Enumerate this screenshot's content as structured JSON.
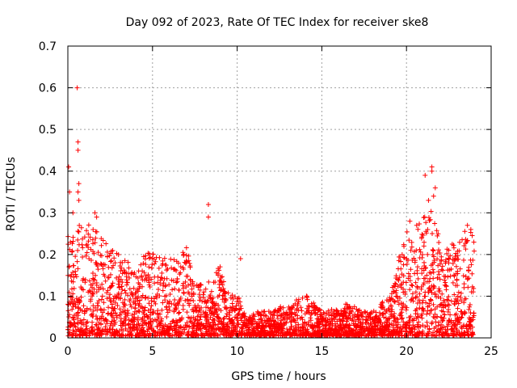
{
  "chart_data": {
    "type": "scatter",
    "title": "Day 092 of 2023, Rate Of TEC Index for receiver ske8",
    "xlabel": "GPS time / hours",
    "ylabel": "ROTI / TECUs",
    "xlim": [
      0,
      25
    ],
    "ylim": [
      0,
      0.7
    ],
    "xticks": [
      "0",
      "5",
      "10",
      "15",
      "20",
      "25"
    ],
    "yticks": [
      "0",
      "0.1",
      "0.2",
      "0.3",
      "0.4",
      "0.5",
      "0.6",
      "0.7"
    ],
    "grid": true,
    "marker": "plus",
    "color": "#ff0000",
    "envelope": [
      [
        0.0,
        0.24
      ],
      [
        0.5,
        0.27
      ],
      [
        1.0,
        0.26
      ],
      [
        1.5,
        0.28
      ],
      [
        2.0,
        0.24
      ],
      [
        2.5,
        0.21
      ],
      [
        3.0,
        0.2
      ],
      [
        3.5,
        0.18
      ],
      [
        4.0,
        0.15
      ],
      [
        4.5,
        0.21
      ],
      [
        5.0,
        0.2
      ],
      [
        5.5,
        0.2
      ],
      [
        6.0,
        0.19
      ],
      [
        6.5,
        0.18
      ],
      [
        7.0,
        0.22
      ],
      [
        7.5,
        0.12
      ],
      [
        8.0,
        0.14
      ],
      [
        8.5,
        0.13
      ],
      [
        9.0,
        0.18
      ],
      [
        9.5,
        0.1
      ],
      [
        10.0,
        0.1
      ],
      [
        10.5,
        0.06
      ],
      [
        11.0,
        0.06
      ],
      [
        11.5,
        0.06
      ],
      [
        12.0,
        0.06
      ],
      [
        12.5,
        0.07
      ],
      [
        13.0,
        0.07
      ],
      [
        13.5,
        0.09
      ],
      [
        14.0,
        0.1
      ],
      [
        14.5,
        0.08
      ],
      [
        15.0,
        0.06
      ],
      [
        15.5,
        0.07
      ],
      [
        16.0,
        0.06
      ],
      [
        16.5,
        0.08
      ],
      [
        17.0,
        0.07
      ],
      [
        17.5,
        0.06
      ],
      [
        18.0,
        0.06
      ],
      [
        18.5,
        0.08
      ],
      [
        19.0,
        0.09
      ],
      [
        19.5,
        0.19
      ],
      [
        20.0,
        0.25
      ],
      [
        20.5,
        0.26
      ],
      [
        21.0,
        0.3
      ],
      [
        21.5,
        0.33
      ],
      [
        22.0,
        0.22
      ],
      [
        22.5,
        0.22
      ],
      [
        23.0,
        0.22
      ],
      [
        23.5,
        0.26
      ],
      [
        24.0,
        0.26
      ]
    ],
    "outliers": [
      [
        0.05,
        0.41
      ],
      [
        0.1,
        0.35
      ],
      [
        0.3,
        0.3
      ],
      [
        0.55,
        0.6
      ],
      [
        0.6,
        0.47
      ],
      [
        0.6,
        0.45
      ],
      [
        0.65,
        0.37
      ],
      [
        0.6,
        0.35
      ],
      [
        0.65,
        0.33
      ],
      [
        1.6,
        0.3
      ],
      [
        1.7,
        0.29
      ],
      [
        8.3,
        0.32
      ],
      [
        8.3,
        0.29
      ],
      [
        10.2,
        0.19
      ],
      [
        21.1,
        0.39
      ],
      [
        21.3,
        0.33
      ],
      [
        21.5,
        0.41
      ],
      [
        21.5,
        0.4
      ],
      [
        21.6,
        0.34
      ],
      [
        21.7,
        0.36
      ],
      [
        20.2,
        0.28
      ],
      [
        20.6,
        0.27
      ],
      [
        23.6,
        0.27
      ],
      [
        23.8,
        0.26
      ]
    ]
  }
}
